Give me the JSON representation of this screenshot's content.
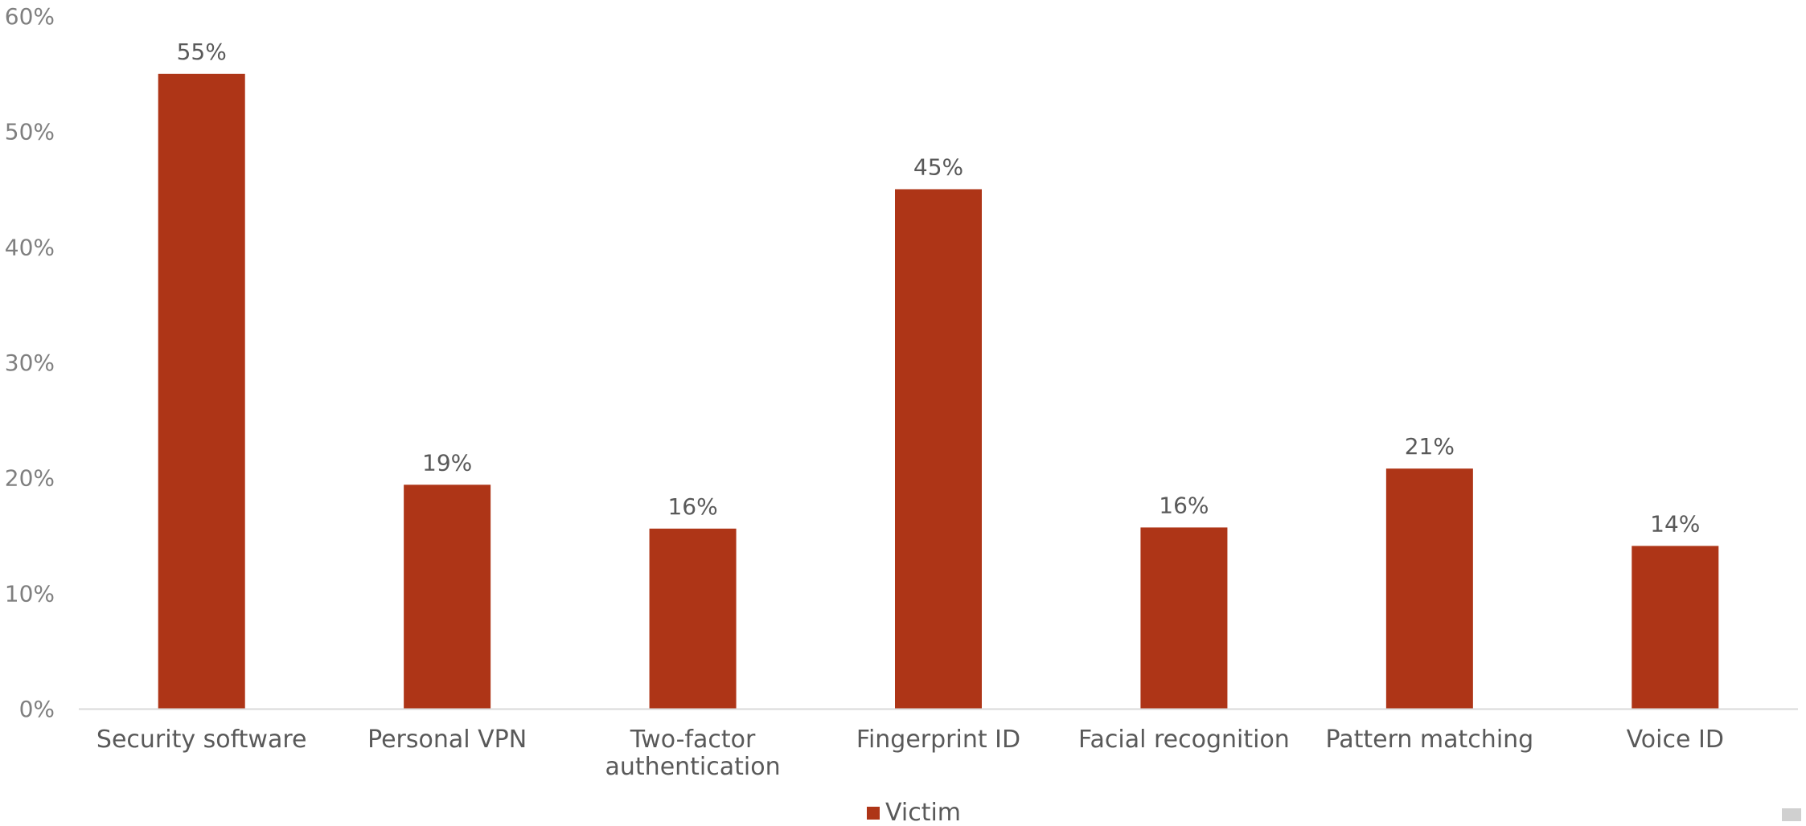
{
  "chart_data": {
    "type": "bar",
    "categories": [
      "Security software",
      "Personal VPN",
      "Two-factor authentication",
      "Fingerprint ID",
      "Facial recognition",
      "Pattern matching",
      "Voice ID"
    ],
    "category_label_lines": [
      [
        "Security software"
      ],
      [
        "Personal VPN"
      ],
      [
        "Two-factor",
        "authentication"
      ],
      [
        "Fingerprint ID"
      ],
      [
        "Facial recognition"
      ],
      [
        "Pattern matching"
      ],
      [
        "Voice ID"
      ]
    ],
    "series": [
      {
        "name": "Victim",
        "values": [
          55,
          19.4,
          15.6,
          45,
          15.7,
          20.8,
          14.1
        ],
        "data_labels": [
          "55%",
          "19%",
          "16%",
          "45%",
          "16%",
          "21%",
          "14%"
        ],
        "color": "#ae3517"
      }
    ],
    "title": "",
    "xlabel": "",
    "ylabel": "",
    "ylim": [
      0,
      60
    ],
    "yticks": [
      0,
      10,
      20,
      30,
      40,
      50,
      60
    ],
    "ytick_labels": [
      "0%",
      "10%",
      "20%",
      "30%",
      "40%",
      "50%",
      "60%"
    ],
    "grid": false,
    "legend": {
      "position": "bottom",
      "entries": [
        "Victim"
      ]
    },
    "colors": {
      "bar": "#ae3517",
      "axis": "#d9d9d9",
      "text": "#595959",
      "tick_text": "#7f7f7f"
    }
  }
}
